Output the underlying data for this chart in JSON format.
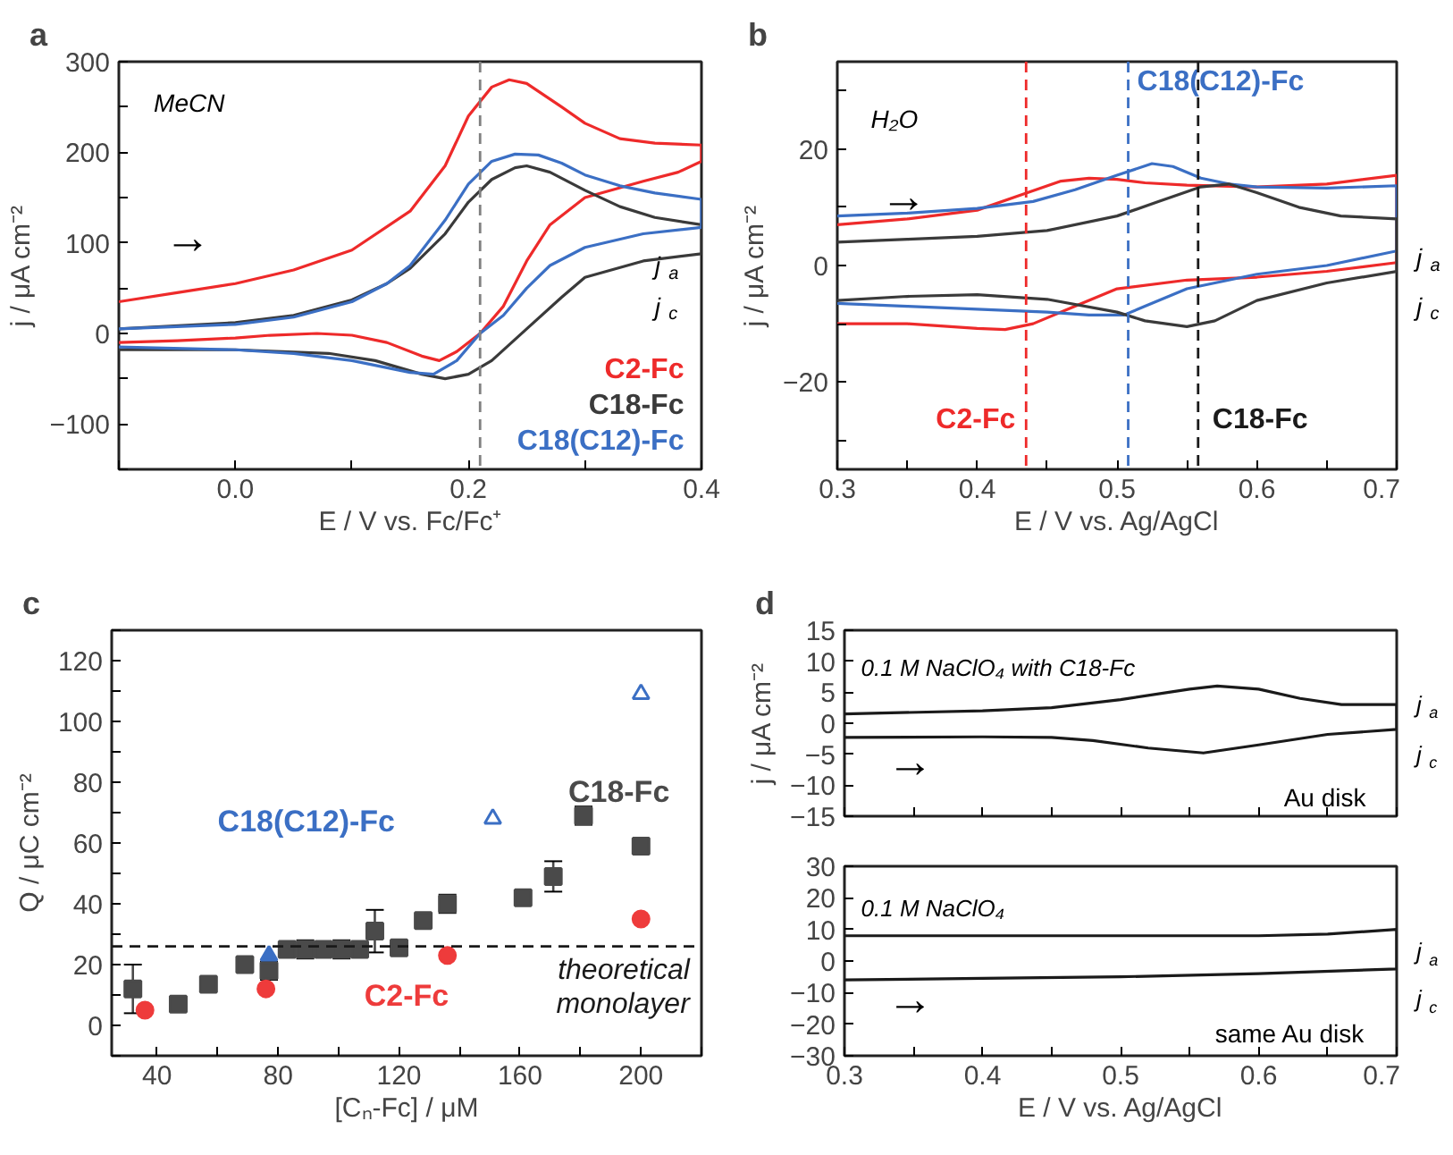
{
  "chart_data": [
    {
      "type": "line",
      "title": "a",
      "xlabel": "E / V vs. Fc/Fc⁺",
      "ylabel": "j / μA cm⁻²",
      "xlim": [
        -0.1,
        0.4
      ],
      "ylim": [
        -150,
        300
      ],
      "xticks": [
        {
          "value": -0.1,
          "label": null
        },
        {
          "value": 0.0,
          "label": "0.0"
        },
        {
          "value": 0.1,
          "label": null
        },
        {
          "value": 0.2,
          "label": "0.2"
        },
        {
          "value": 0.3,
          "label": null
        },
        {
          "value": 0.4,
          "label": "0.4"
        }
      ],
      "yticks": [
        {
          "value": -150,
          "label": null
        },
        -100,
        {
          "value": -50,
          "label": null
        },
        0,
        {
          "value": 50,
          "label": null
        },
        100,
        {
          "value": 150,
          "label": null
        },
        200,
        {
          "value": 250,
          "label": null
        },
        300
      ],
      "grid": false,
      "legend": "bottom right",
      "series": [
        {
          "name": "C2-Fc",
          "color": "#ee2a2a",
          "x": [
            -0.1,
            -0.05,
            0,
            0.05,
            0.1,
            0.15,
            0.18,
            0.2,
            0.22,
            0.235,
            0.25,
            0.28,
            0.3,
            0.33,
            0.36,
            0.4,
            0.4,
            0.38,
            0.35,
            0.3,
            0.27,
            0.25,
            0.23,
            0.21,
            0.19,
            0.175,
            0.16,
            0.13,
            0.1,
            0.07,
            0.03,
            0,
            -0.05,
            -0.1
          ],
          "values": [
            35,
            45,
            55,
            70,
            92,
            135,
            185,
            240,
            272,
            280,
            276,
            250,
            232,
            215,
            210,
            208,
            190,
            178,
            168,
            150,
            120,
            80,
            30,
            0,
            -20,
            -30,
            -25,
            -10,
            -2,
            0,
            -2,
            -5,
            -8,
            -10
          ]
        },
        {
          "name": "C18-Fc",
          "color": "#3a3a3a",
          "x": [
            -0.1,
            0,
            0.05,
            0.1,
            0.13,
            0.15,
            0.18,
            0.2,
            0.22,
            0.24,
            0.25,
            0.27,
            0.3,
            0.33,
            0.36,
            0.4,
            0.4,
            0.35,
            0.3,
            0.28,
            0.25,
            0.22,
            0.2,
            0.18,
            0.16,
            0.12,
            0.08,
            0,
            -0.1
          ],
          "values": [
            5,
            12,
            20,
            37,
            55,
            72,
            110,
            145,
            170,
            183,
            185,
            178,
            158,
            140,
            128,
            120,
            88,
            80,
            62,
            40,
            5,
            -30,
            -45,
            -50,
            -45,
            -30,
            -22,
            -18,
            -18
          ]
        },
        {
          "name": "C18(C12)-Fc",
          "color": "#3b6fc4",
          "x": [
            -0.1,
            0,
            0.05,
            0.1,
            0.13,
            0.15,
            0.18,
            0.2,
            0.22,
            0.24,
            0.26,
            0.28,
            0.3,
            0.33,
            0.36,
            0.4,
            0.4,
            0.35,
            0.3,
            0.27,
            0.25,
            0.23,
            0.21,
            0.19,
            0.17,
            0.15,
            0.1,
            0.05,
            0,
            -0.1
          ],
          "values": [
            5,
            10,
            18,
            35,
            55,
            75,
            125,
            165,
            190,
            198,
            197,
            188,
            175,
            163,
            155,
            148,
            117,
            110,
            95,
            75,
            50,
            20,
            0,
            -30,
            -45,
            -43,
            -30,
            -22,
            -18,
            -15
          ]
        }
      ],
      "ref_lines": [
        {
          "axis": "x",
          "value": 0.21,
          "color": "#808080",
          "line_style": "dashed"
        }
      ],
      "annotations": [
        "MeCN",
        "→",
        "j$_{a}$",
        "j$_{c}$"
      ]
    },
    {
      "type": "line",
      "title": "b",
      "xlabel": "E / V vs. Ag/AgCl",
      "ylabel": "j / μA cm⁻²",
      "xlim": [
        0.3,
        0.7
      ],
      "ylim": [
        -35,
        35
      ],
      "xticks": [
        0.3,
        {
          "value": 0.35,
          "label": null
        },
        0.4,
        {
          "value": 0.45,
          "label": null
        },
        0.5,
        {
          "value": 0.55,
          "label": null
        },
        0.6,
        {
          "value": 0.65,
          "label": null
        },
        0.7
      ],
      "yticks": [
        {
          "value": -30,
          "label": null
        },
        -20,
        {
          "value": -10,
          "label": null
        },
        0,
        {
          "value": 10,
          "label": null
        },
        20,
        {
          "value": 30,
          "label": null
        }
      ],
      "grid": false,
      "series": [
        {
          "color": "#ee2a2a",
          "x": [
            0.3,
            0.35,
            0.4,
            0.43,
            0.46,
            0.48,
            0.5,
            0.52,
            0.55,
            0.6,
            0.65,
            0.7,
            0.7,
            0.65,
            0.6,
            0.55,
            0.5,
            0.47,
            0.44,
            0.42,
            0.4,
            0.35,
            0.3
          ],
          "values": [
            7,
            8,
            9.5,
            12,
            14.5,
            15,
            14.8,
            14.2,
            13.8,
            13.5,
            14,
            15.5,
            0.5,
            -1,
            -2,
            -2.5,
            -4,
            -7,
            -10,
            -11,
            -10.8,
            -10,
            -10
          ]
        },
        {
          "color": "#3b6fc4",
          "x": [
            0.3,
            0.35,
            0.4,
            0.44,
            0.47,
            0.5,
            0.525,
            0.54,
            0.56,
            0.58,
            0.6,
            0.65,
            0.7,
            0.7,
            0.65,
            0.6,
            0.55,
            0.52,
            0.505,
            0.48,
            0.45,
            0.4,
            0.35,
            0.3
          ],
          "values": [
            8.5,
            9,
            9.8,
            11,
            13,
            15.5,
            17.5,
            17,
            15,
            14,
            13.5,
            13.3,
            13.7,
            2.5,
            0,
            -1.5,
            -4,
            -7,
            -8.5,
            -8.5,
            -8,
            -7.5,
            -7,
            -6.5
          ]
        },
        {
          "color": "#3a3a3a",
          "x": [
            0.3,
            0.35,
            0.4,
            0.45,
            0.5,
            0.53,
            0.56,
            0.58,
            0.6,
            0.63,
            0.66,
            0.7,
            0.7,
            0.65,
            0.6,
            0.57,
            0.55,
            0.52,
            0.5,
            0.45,
            0.4,
            0.35,
            0.3
          ],
          "values": [
            4,
            4.5,
            5,
            6,
            8.5,
            11,
            13.5,
            14,
            12.5,
            10,
            8.5,
            8,
            -1,
            -3,
            -6,
            -9.5,
            -10.5,
            -9.5,
            -8,
            -5.8,
            -5,
            -5.3,
            -6
          ]
        }
      ],
      "ref_lines": [
        {
          "axis": "x",
          "value": 0.435,
          "label": "C2-Fc",
          "color": "#ee2a2a",
          "line_style": "dashed"
        },
        {
          "axis": "x",
          "value": 0.508,
          "label": "C18(C12)-Fc",
          "color": "#3b6fc4",
          "line_style": "dashed"
        },
        {
          "axis": "x",
          "value": 0.558,
          "label": "C18-Fc",
          "color": "#1a1a1a",
          "line_style": "dashed"
        }
      ],
      "annotations": [
        "H₂O",
        "→",
        "j$_{a}$",
        "j$_{c}$"
      ]
    },
    {
      "type": "scatter",
      "title": "c",
      "xlabel": "[Cₙ-Fc] / μM",
      "ylabel": "Q / μC cm⁻²",
      "xlim": [
        25,
        220
      ],
      "ylim": [
        -10,
        130
      ],
      "xticks": [
        40,
        {
          "value": 60,
          "label": null
        },
        80,
        {
          "value": 100,
          "label": null
        },
        120,
        {
          "value": 140,
          "label": null
        },
        160,
        {
          "value": 180,
          "label": null
        },
        200,
        {
          "value": 220,
          "label": null
        }
      ],
      "yticks": [
        {
          "value": -10,
          "label": null
        },
        0,
        {
          "value": 10,
          "label": null
        },
        20,
        {
          "value": 30,
          "label": null
        },
        40,
        {
          "value": 50,
          "label": null
        },
        60,
        {
          "value": 70,
          "label": null
        },
        80,
        {
          "value": 90,
          "label": null
        },
        100,
        {
          "value": 110,
          "label": null
        },
        120,
        {
          "value": 130,
          "label": null
        }
      ],
      "grid": false,
      "series": [
        {
          "name": "C18-Fc",
          "color": "#4a4a4a",
          "marker": "square",
          "x": [
            32,
            47,
            57,
            69,
            77,
            83,
            89,
            95,
            101,
            107,
            112,
            120,
            128,
            136,
            161,
            171,
            181,
            200
          ],
          "values": [
            12,
            7,
            13.5,
            20,
            18,
            25,
            25,
            25,
            25,
            25,
            31,
            25.5,
            34.5,
            40,
            42,
            49,
            69,
            59
          ],
          "errors": [
            8,
            null,
            null,
            null,
            3,
            null,
            3,
            null,
            3,
            null,
            7,
            1.5,
            null,
            3,
            null,
            5,
            3,
            null
          ]
        },
        {
          "name": "C2-Fc",
          "color": "#ee3b3b",
          "marker": "circle",
          "x": [
            36,
            76,
            136,
            200
          ],
          "values": [
            5,
            12,
            23,
            35
          ]
        },
        {
          "name": "C18(C12)-Fc",
          "color": "#3b6fc4",
          "marker": "triangle",
          "x": [
            77
          ],
          "values": [
            23
          ]
        },
        {
          "color": "#3b6fc4",
          "marker": "triangle",
          "x": [
            151,
            200
          ],
          "values": [
            68,
            109
          ]
        }
      ],
      "ref_lines": [
        {
          "axis": "y",
          "value": 26,
          "label": "theoretical\nmonolayer",
          "color": "#1a1a1a",
          "line_style": "dashed"
        }
      ]
    },
    {
      "type": "line",
      "title": "d",
      "ylabel": "j / μA cm⁻²",
      "xlim": [
        0.3,
        0.7
      ],
      "ylim": [
        -15,
        15
      ],
      "tick_labels": "y",
      "xticks": [
        {
          "value": 0.3,
          "label": null
        },
        {
          "value": 0.35,
          "label": null
        },
        {
          "value": 0.4,
          "label": null
        },
        {
          "value": 0.45,
          "label": null
        },
        {
          "value": 0.5,
          "label": null
        },
        {
          "value": 0.55,
          "label": null
        },
        {
          "value": 0.6,
          "label": null
        },
        {
          "value": 0.65,
          "label": null
        },
        {
          "value": 0.7,
          "label": null
        }
      ],
      "yticks": [
        -15,
        -10,
        -5,
        0,
        5,
        10,
        15
      ],
      "grid": false,
      "series": [
        {
          "color": "#1a1a1a",
          "x": [
            0.3,
            0.4,
            0.45,
            0.5,
            0.55,
            0.57,
            0.6,
            0.63,
            0.66,
            0.7,
            0.7,
            0.65,
            0.6,
            0.56,
            0.52,
            0.48,
            0.45,
            0.4,
            0.3
          ],
          "values": [
            1.5,
            2,
            2.5,
            3.8,
            5.5,
            6,
            5.5,
            4,
            3,
            3,
            -1,
            -1.8,
            -3.5,
            -4.8,
            -4,
            -2.8,
            -2.3,
            -2.2,
            -2.3
          ]
        }
      ],
      "annotations": [
        "0.1 M NaClO₄ with C18-Fc",
        "Au disk",
        "→",
        "j$_{a}$",
        "j$_{c}$"
      ]
    },
    {
      "type": "line",
      "xlabel": "E / V vs. Ag/AgCl",
      "xlim": [
        0.3,
        0.7
      ],
      "ylim": [
        -30,
        30
      ],
      "xticks": [
        0.3,
        {
          "value": 0.35,
          "label": null
        },
        0.4,
        {
          "value": 0.45,
          "label": null
        },
        0.5,
        {
          "value": 0.55,
          "label": null
        },
        0.6,
        {
          "value": 0.65,
          "label": null
        },
        0.7
      ],
      "yticks": [
        -30,
        -20,
        -10,
        0,
        10,
        20,
        30
      ],
      "grid": false,
      "series": [
        {
          "color": "#1a1a1a",
          "x": [
            0.3,
            0.4,
            0.5,
            0.6,
            0.65,
            0.7,
            0.7,
            0.6,
            0.5,
            0.4,
            0.3
          ],
          "values": [
            8,
            8,
            8,
            8,
            8.5,
            10,
            -2.5,
            -4,
            -5,
            -5.5,
            -6
          ]
        }
      ],
      "annotations": [
        "0.1 M NaClO₄",
        "same Au disk",
        "→",
        "j$_{a}$",
        "j$_{c}$"
      ]
    }
  ]
}
